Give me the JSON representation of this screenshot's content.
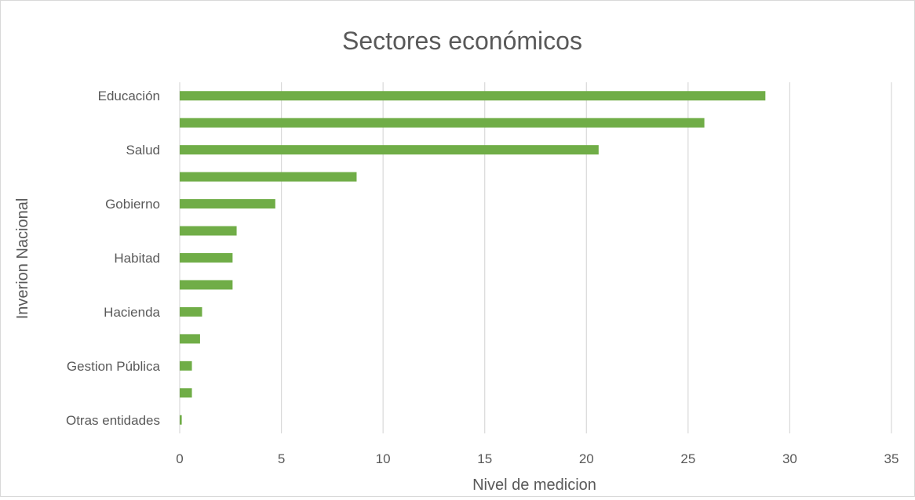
{
  "chart_data": {
    "type": "bar",
    "orientation": "horizontal",
    "title": "Sectores económicos",
    "xlabel": "Nivel de medicion",
    "ylabel": "Inverion Nacional",
    "categories": [
      "Educación",
      "",
      "Salud",
      "",
      "Gobierno",
      "",
      "Habitad",
      "",
      "Hacienda",
      "",
      "Gestion Pública",
      "",
      "Otras entidades"
    ],
    "values": [
      28.8,
      25.8,
      20.6,
      8.7,
      4.7,
      2.8,
      2.6,
      2.6,
      1.1,
      1.0,
      0.6,
      0.6,
      0.1
    ],
    "xlim": [
      0,
      35
    ],
    "xticks": [
      "0",
      "5",
      "10",
      "15",
      "20",
      "25",
      "30",
      "35"
    ],
    "grid": "vertical",
    "legend": "none",
    "bar_color": "#70AD47"
  }
}
